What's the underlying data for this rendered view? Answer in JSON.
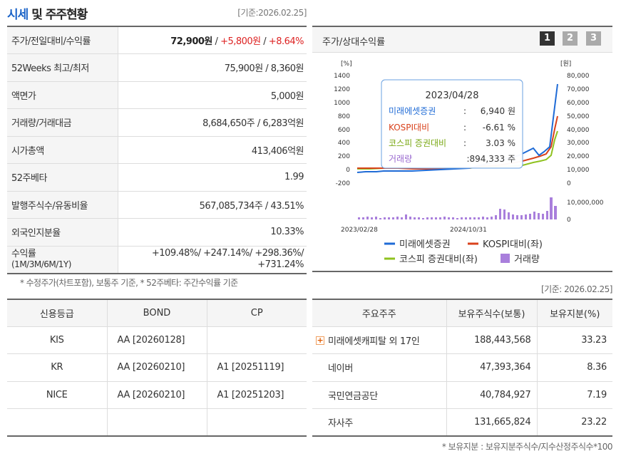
{
  "header": {
    "title_blue": "시세",
    "title_rest": " 및 주주현황",
    "date": "[기준:2026.02.25]"
  },
  "info": {
    "price_label": "주가/전일대비/수익률",
    "price": "72,900원",
    "change": "+5,800원",
    "rate": "+8.64%",
    "w52_label": "52Weeks 최고/최저",
    "w52_value": "75,900원 / 8,360원",
    "par_label": "액면가",
    "par_value": "5,000원",
    "volume_label": "거래량/거래대금",
    "volume_value": "8,684,650주 / 6,283억원",
    "mcap_label": "시가총액",
    "mcap_value": "413,406억원",
    "beta_label": "52주베타",
    "beta_value": "1.99",
    "shares_label": "발행주식수/유동비율",
    "shares_value": "567,085,734주 / 43.51%",
    "foreign_label": "외국인지분율",
    "foreign_value": "10.33%",
    "return_label": "수익률",
    "return_sub": "(1M/3M/6M/1Y)",
    "return_line1": "+109.48%/ +247.14%/ +298.36%/",
    "return_line2": "+731.24%",
    "note": "* 수정주가(차트포함), 보통주 기준, * 52주베타: 주간수익률 기준"
  },
  "chart": {
    "title": "주가/상대수익률",
    "pages": [
      "1",
      "2",
      "3"
    ],
    "left_unit": "[%]",
    "right_unit": "[원]",
    "left_ticks": [
      "1400",
      "1200",
      "1000",
      "800",
      "600",
      "400",
      "200",
      "0",
      "-200"
    ],
    "right_ticks": [
      "80,000",
      "70,000",
      "60,000",
      "50,000",
      "40,000",
      "30,000",
      "20,000",
      "10,000",
      "0"
    ],
    "vol_ticks": [
      "10,000,000",
      "0"
    ],
    "x_labels": [
      "2023/02/28",
      "2024/10/31"
    ],
    "tooltip": {
      "date": "2023/04/28",
      "rows": [
        {
          "name": "미래에셋증권",
          "value": "6,940 원"
        },
        {
          "name": "KOSPI대비",
          "value": "-6.61 %"
        },
        {
          "name": "코스피 증권대비",
          "value": "3.03 %"
        },
        {
          "name": "거래량",
          "value": ":894,333 주"
        }
      ]
    },
    "legend": [
      "미래에셋증권",
      "KOSPI대비(좌)",
      "코스피 증권대비(좌)",
      "거래량"
    ],
    "colors": {
      "price": "#1f6bd6",
      "kospi": "#d9421c",
      "sector": "#8fc21f",
      "volume": "#a97fdc"
    }
  },
  "date2": "[기준: 2026.02.25]",
  "credit": {
    "headers": [
      "신용등급",
      "BOND",
      "CP"
    ],
    "rows": [
      {
        "agency": "KIS",
        "bond": "AA  [20260128]",
        "cp": ""
      },
      {
        "agency": "KR",
        "bond": "AA  [20260210]",
        "cp": "A1  [20251119]"
      },
      {
        "agency": "NICE",
        "bond": "AA  [20260210]",
        "cp": "A1  [20251203]"
      }
    ]
  },
  "holders": {
    "headers": [
      "주요주주",
      "보유주식수(보통)",
      "보유지분(%)"
    ],
    "rows": [
      {
        "name": "미래에셋캐피탈 외 17인",
        "shares": "188,443,568",
        "pct": "33.23"
      },
      {
        "name": "네이버",
        "shares": "47,393,364",
        "pct": "8.36"
      },
      {
        "name": "국민연금공단",
        "shares": "40,784,927",
        "pct": "7.19"
      },
      {
        "name": "자사주",
        "shares": "131,665,824",
        "pct": "23.22"
      }
    ],
    "note": "* 보유지분 : 보유지분주식수/지수산정주식수*100"
  }
}
